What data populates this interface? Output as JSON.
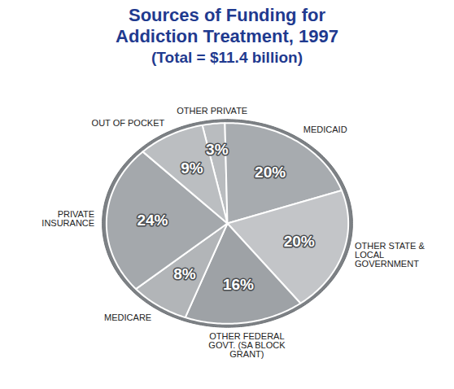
{
  "chart_data": {
    "type": "pie",
    "title": "Sources of Funding for Addiction Treatment, 1997",
    "subtitle": "(Total = $11.4 billion)",
    "categories": [
      "OTHER PRIVATE",
      "MEDICAID",
      "OTHER STATE & LOCAL GOVERNMENT",
      "OTHER FEDERAL GOVT. (SA BLOCK GRANT)",
      "MEDICARE",
      "PRIVATE INSURANCE",
      "OUT OF POCKET"
    ],
    "values": [
      3,
      20,
      20,
      16,
      8,
      24,
      9
    ],
    "value_labels": [
      "3%",
      "20%",
      "20%",
      "16%",
      "8%",
      "24%",
      "9%"
    ],
    "colors": [
      "#b9bcbf",
      "#a7abaf",
      "#c3c5c8",
      "#9ea2a6",
      "#b2b5b8",
      "#a4a8ac",
      "#bbbec1"
    ],
    "data_labels": true
  }
}
